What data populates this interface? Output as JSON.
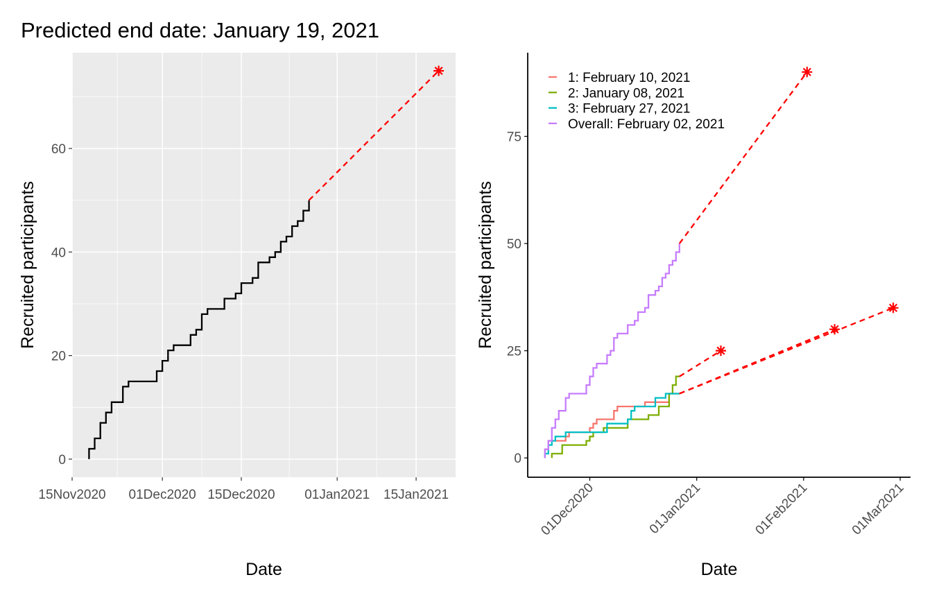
{
  "chart_data": [
    {
      "type": "line",
      "title": "Predicted end date: January 19, 2021",
      "xlabel": "Date",
      "ylabel": "Recruited participants",
      "x_ticks": [
        "15Nov2020",
        "01Dec2020",
        "15Dec2020",
        "01Jan2021",
        "15Jan2021"
      ],
      "y_ticks": [
        0,
        20,
        40,
        60
      ],
      "xlim": [
        "2020-11-15",
        "2021-01-22"
      ],
      "ylim": [
        -3.5,
        78.5
      ],
      "background": "grey panel with white grid",
      "series": [
        {
          "color": "#000000",
          "style": "step",
          "points": [
            [
              "2020-11-18",
              0
            ],
            [
              "2020-11-18",
              2
            ],
            [
              "2020-11-19",
              2
            ],
            [
              "2020-11-19",
              4
            ],
            [
              "2020-11-20",
              4
            ],
            [
              "2020-11-20",
              7
            ],
            [
              "2020-11-21",
              7
            ],
            [
              "2020-11-21",
              9
            ],
            [
              "2020-11-22",
              9
            ],
            [
              "2020-11-22",
              11
            ],
            [
              "2020-11-24",
              11
            ],
            [
              "2020-11-24",
              14
            ],
            [
              "2020-11-25",
              14
            ],
            [
              "2020-11-25",
              15
            ],
            [
              "2020-11-30",
              15
            ],
            [
              "2020-11-30",
              17
            ],
            [
              "2020-12-01",
              17
            ],
            [
              "2020-12-01",
              19
            ],
            [
              "2020-12-02",
              19
            ],
            [
              "2020-12-02",
              21
            ],
            [
              "2020-12-03",
              21
            ],
            [
              "2020-12-03",
              22
            ],
            [
              "2020-12-06",
              22
            ],
            [
              "2020-12-06",
              24
            ],
            [
              "2020-12-07",
              24
            ],
            [
              "2020-12-07",
              25
            ],
            [
              "2020-12-08",
              25
            ],
            [
              "2020-12-08",
              28
            ],
            [
              "2020-12-09",
              28
            ],
            [
              "2020-12-09",
              29
            ],
            [
              "2020-12-12",
              29
            ],
            [
              "2020-12-12",
              31
            ],
            [
              "2020-12-14",
              31
            ],
            [
              "2020-12-14",
              32
            ],
            [
              "2020-12-15",
              32
            ],
            [
              "2020-12-15",
              34
            ],
            [
              "2020-12-17",
              34
            ],
            [
              "2020-12-17",
              35
            ],
            [
              "2020-12-18",
              35
            ],
            [
              "2020-12-18",
              38
            ],
            [
              "2020-12-20",
              38
            ],
            [
              "2020-12-20",
              39
            ],
            [
              "2020-12-21",
              39
            ],
            [
              "2020-12-21",
              40
            ],
            [
              "2020-12-22",
              40
            ],
            [
              "2020-12-22",
              42
            ],
            [
              "2020-12-23",
              42
            ],
            [
              "2020-12-23",
              43
            ],
            [
              "2020-12-24",
              43
            ],
            [
              "2020-12-24",
              45
            ],
            [
              "2020-12-25",
              45
            ],
            [
              "2020-12-25",
              46
            ],
            [
              "2020-12-26",
              46
            ],
            [
              "2020-12-26",
              48
            ],
            [
              "2020-12-27",
              48
            ],
            [
              "2020-12-27",
              50
            ]
          ]
        }
      ],
      "projections": [
        {
          "color": "#ff0000",
          "from": [
            "2020-12-27",
            50
          ],
          "to": [
            "2021-01-19",
            75
          ]
        }
      ],
      "end_markers": [
        {
          "x": "2021-01-19",
          "y": 75,
          "color": "#ff0000",
          "shape": "asterisk"
        }
      ]
    },
    {
      "type": "line",
      "xlabel": "Date",
      "ylabel": "Recruited participants",
      "x_ticks": [
        "01Dec2020",
        "01Jan2021",
        "01Feb2021",
        "01Mar2021"
      ],
      "y_ticks": [
        0,
        25,
        50,
        75
      ],
      "xlim": [
        "2020-11-13",
        "2021-03-04"
      ],
      "ylim": [
        -4.5,
        94.5
      ],
      "background": "white, axis lines only",
      "legend": {
        "position": "top-left"
      },
      "series": [
        {
          "name": "1: February 10, 2021",
          "color": "#f8766d",
          "style": "step",
          "points": [
            [
              "2020-11-18",
              0
            ],
            [
              "2020-11-18",
              2
            ],
            [
              "2020-11-19",
              2
            ],
            [
              "2020-11-19",
              4
            ],
            [
              "2020-11-24",
              4
            ],
            [
              "2020-11-24",
              5
            ],
            [
              "2020-11-25",
              5
            ],
            [
              "2020-11-25",
              6
            ],
            [
              "2020-12-01",
              6
            ],
            [
              "2020-12-01",
              7
            ],
            [
              "2020-12-02",
              7
            ],
            [
              "2020-12-02",
              8
            ],
            [
              "2020-12-03",
              8
            ],
            [
              "2020-12-03",
              9
            ],
            [
              "2020-12-08",
              9
            ],
            [
              "2020-12-08",
              11
            ],
            [
              "2020-12-09",
              11
            ],
            [
              "2020-12-09",
              12
            ],
            [
              "2020-12-17",
              12
            ],
            [
              "2020-12-17",
              13
            ],
            [
              "2020-12-24",
              13
            ],
            [
              "2020-12-24",
              15
            ],
            [
              "2020-12-27",
              15
            ]
          ]
        },
        {
          "name": "2: January 08, 2021",
          "color": "#7cae00",
          "style": "step",
          "points": [
            [
              "2020-11-20",
              0
            ],
            [
              "2020-11-20",
              1
            ],
            [
              "2020-11-23",
              1
            ],
            [
              "2020-11-23",
              3
            ],
            [
              "2020-11-30",
              3
            ],
            [
              "2020-11-30",
              4
            ],
            [
              "2020-12-01",
              4
            ],
            [
              "2020-12-01",
              5
            ],
            [
              "2020-12-02",
              5
            ],
            [
              "2020-12-02",
              6
            ],
            [
              "2020-12-05",
              6
            ],
            [
              "2020-12-05",
              7
            ],
            [
              "2020-12-12",
              7
            ],
            [
              "2020-12-12",
              9
            ],
            [
              "2020-12-18",
              9
            ],
            [
              "2020-12-18",
              10
            ],
            [
              "2020-12-21",
              10
            ],
            [
              "2020-12-21",
              12
            ],
            [
              "2020-12-24",
              12
            ],
            [
              "2020-12-24",
              15
            ],
            [
              "2020-12-25",
              15
            ],
            [
              "2020-12-25",
              17
            ],
            [
              "2020-12-26",
              17
            ],
            [
              "2020-12-26",
              19
            ],
            [
              "2020-12-27",
              19
            ]
          ]
        },
        {
          "name": "3: February 27, 2021",
          "color": "#00bfc4",
          "style": "step",
          "points": [
            [
              "2020-11-18",
              0
            ],
            [
              "2020-11-18",
              1
            ],
            [
              "2020-11-19",
              1
            ],
            [
              "2020-11-19",
              3
            ],
            [
              "2020-11-20",
              3
            ],
            [
              "2020-11-20",
              4
            ],
            [
              "2020-11-21",
              4
            ],
            [
              "2020-11-21",
              5
            ],
            [
              "2020-11-24",
              5
            ],
            [
              "2020-11-24",
              6
            ],
            [
              "2020-12-06",
              6
            ],
            [
              "2020-12-06",
              8
            ],
            [
              "2020-12-12",
              8
            ],
            [
              "2020-12-12",
              9
            ],
            [
              "2020-12-13",
              9
            ],
            [
              "2020-12-13",
              11
            ],
            [
              "2020-12-14",
              11
            ],
            [
              "2020-12-14",
              12
            ],
            [
              "2020-12-20",
              12
            ],
            [
              "2020-12-20",
              14
            ],
            [
              "2020-12-23",
              14
            ],
            [
              "2020-12-23",
              15
            ],
            [
              "2020-12-27",
              15
            ]
          ]
        },
        {
          "name": "Overall: February 02, 2021",
          "color": "#c77cff",
          "style": "step",
          "points": [
            [
              "2020-11-18",
              0
            ],
            [
              "2020-11-18",
              2
            ],
            [
              "2020-11-19",
              2
            ],
            [
              "2020-11-19",
              4
            ],
            [
              "2020-11-20",
              4
            ],
            [
              "2020-11-20",
              7
            ],
            [
              "2020-11-21",
              7
            ],
            [
              "2020-11-21",
              9
            ],
            [
              "2020-11-22",
              9
            ],
            [
              "2020-11-22",
              11
            ],
            [
              "2020-11-24",
              11
            ],
            [
              "2020-11-24",
              14
            ],
            [
              "2020-11-25",
              14
            ],
            [
              "2020-11-25",
              15
            ],
            [
              "2020-11-30",
              15
            ],
            [
              "2020-11-30",
              17
            ],
            [
              "2020-12-01",
              17
            ],
            [
              "2020-12-01",
              19
            ],
            [
              "2020-12-02",
              19
            ],
            [
              "2020-12-02",
              21
            ],
            [
              "2020-12-03",
              21
            ],
            [
              "2020-12-03",
              22
            ],
            [
              "2020-12-06",
              22
            ],
            [
              "2020-12-06",
              24
            ],
            [
              "2020-12-07",
              24
            ],
            [
              "2020-12-07",
              25
            ],
            [
              "2020-12-08",
              25
            ],
            [
              "2020-12-08",
              28
            ],
            [
              "2020-12-09",
              28
            ],
            [
              "2020-12-09",
              29
            ],
            [
              "2020-12-12",
              29
            ],
            [
              "2020-12-12",
              31
            ],
            [
              "2020-12-14",
              31
            ],
            [
              "2020-12-14",
              32
            ],
            [
              "2020-12-15",
              32
            ],
            [
              "2020-12-15",
              34
            ],
            [
              "2020-12-17",
              34
            ],
            [
              "2020-12-17",
              35
            ],
            [
              "2020-12-18",
              35
            ],
            [
              "2020-12-18",
              38
            ],
            [
              "2020-12-20",
              38
            ],
            [
              "2020-12-20",
              39
            ],
            [
              "2020-12-21",
              39
            ],
            [
              "2020-12-21",
              40
            ],
            [
              "2020-12-22",
              40
            ],
            [
              "2020-12-22",
              42
            ],
            [
              "2020-12-23",
              42
            ],
            [
              "2020-12-23",
              43
            ],
            [
              "2020-12-24",
              43
            ],
            [
              "2020-12-24",
              45
            ],
            [
              "2020-12-25",
              45
            ],
            [
              "2020-12-25",
              46
            ],
            [
              "2020-12-26",
              46
            ],
            [
              "2020-12-26",
              48
            ],
            [
              "2020-12-27",
              48
            ],
            [
              "2020-12-27",
              50
            ]
          ]
        }
      ],
      "projections": [
        {
          "color": "#ff0000",
          "from": [
            "2020-12-27",
            15
          ],
          "to": [
            "2021-02-10",
            30
          ]
        },
        {
          "color": "#ff0000",
          "from": [
            "2020-12-27",
            19
          ],
          "to": [
            "2021-01-08",
            25
          ]
        },
        {
          "color": "#ff0000",
          "from": [
            "2020-12-27",
            15
          ],
          "to": [
            "2021-02-27",
            35
          ]
        },
        {
          "color": "#ff0000",
          "from": [
            "2020-12-27",
            50
          ],
          "to": [
            "2021-02-02",
            90
          ]
        }
      ],
      "end_markers": [
        {
          "x": "2021-02-10",
          "y": 30,
          "color": "#ff0000",
          "shape": "asterisk"
        },
        {
          "x": "2021-01-08",
          "y": 25,
          "color": "#ff0000",
          "shape": "asterisk"
        },
        {
          "x": "2021-02-27",
          "y": 35,
          "color": "#ff0000",
          "shape": "asterisk"
        },
        {
          "x": "2021-02-02",
          "y": 90,
          "color": "#ff0000",
          "shape": "asterisk"
        }
      ]
    }
  ]
}
